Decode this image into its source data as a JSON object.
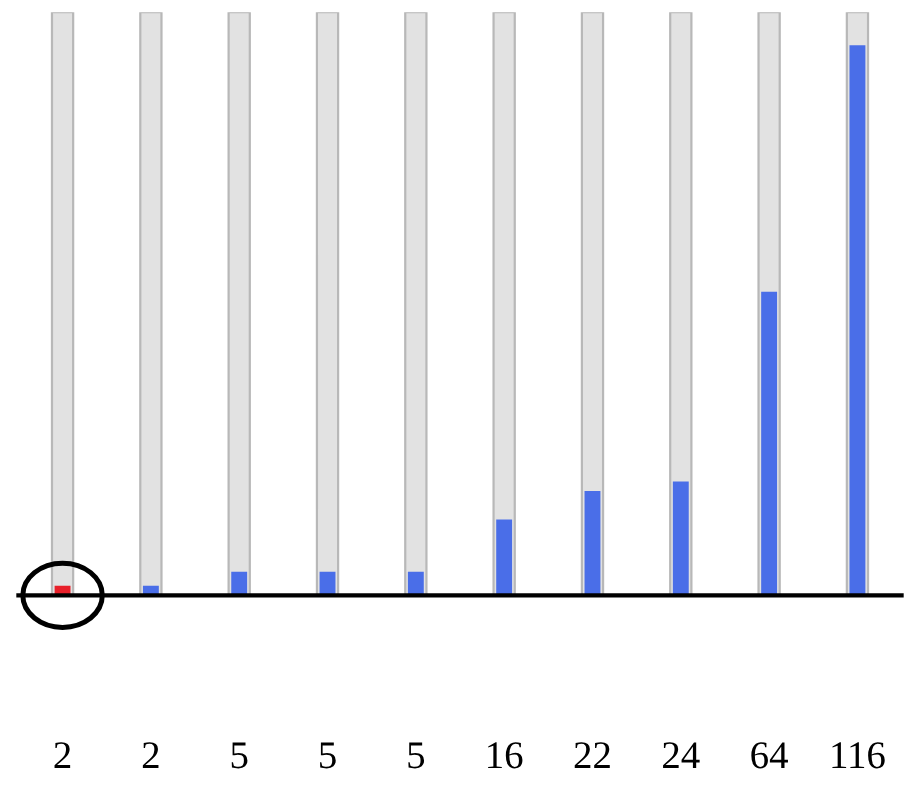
{
  "chart_data": {
    "type": "bar",
    "categories": [
      null,
      null,
      null,
      null,
      null,
      null,
      null,
      null,
      null,
      null
    ],
    "values": [
      2,
      2,
      5,
      5,
      5,
      16,
      22,
      24,
      64,
      116
    ],
    "colors": [
      "#e8202a",
      "#4a6ee8",
      "#4a6ee8",
      "#4a6ee8",
      "#4a6ee8",
      "#4a6ee8",
      "#4a6ee8",
      "#4a6ee8",
      "#4a6ee8",
      "#4a6ee8"
    ],
    "data_labels": true,
    "grid": false,
    "legend": false
  }
}
